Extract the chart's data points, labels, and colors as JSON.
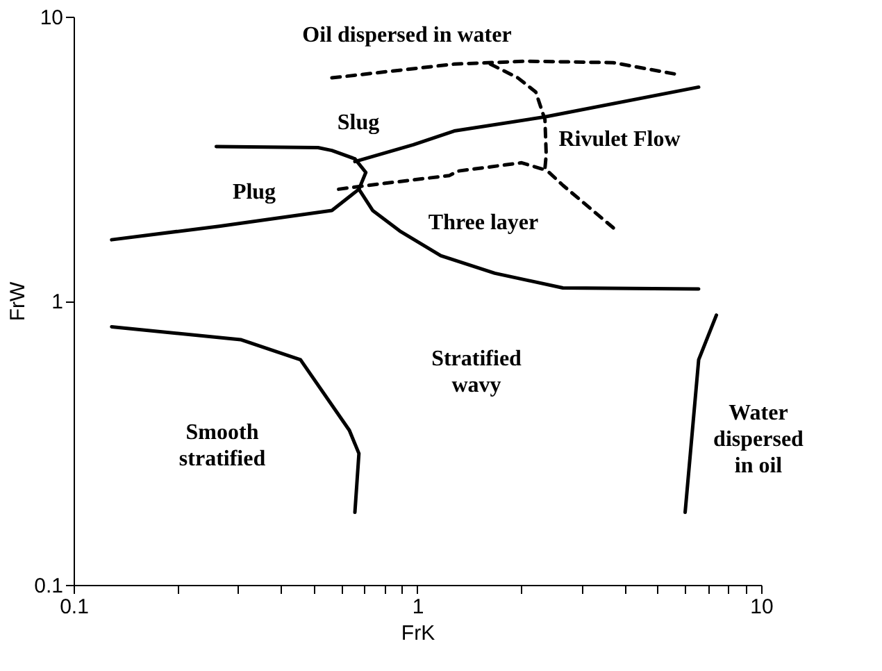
{
  "chart_data": {
    "type": "line",
    "xlabel": "FrK",
    "ylabel": "FrW",
    "log": "xy",
    "grid": false,
    "marker": "none",
    "xlim": [
      0.1,
      10
    ],
    "ylim": [
      0.1,
      10
    ],
    "xticks": [
      0.1,
      {
        "value": 0.2,
        "label": null
      },
      {
        "value": 0.3,
        "label": null
      },
      {
        "value": 0.4,
        "label": null
      },
      {
        "value": 0.5,
        "label": null
      },
      {
        "value": 0.6,
        "label": null
      },
      {
        "value": 0.7,
        "label": null
      },
      {
        "value": 0.8,
        "label": null
      },
      {
        "value": 0.9,
        "label": null
      },
      1,
      {
        "value": 2,
        "label": null
      },
      {
        "value": 3,
        "label": null
      },
      {
        "value": 4,
        "label": null
      },
      {
        "value": 5,
        "label": null
      },
      {
        "value": 6,
        "label": null
      },
      {
        "value": 7,
        "label": null
      },
      {
        "value": 8,
        "label": null
      },
      {
        "value": 9,
        "label": null
      },
      10
    ],
    "yticks": [
      0.1,
      1,
      10
    ],
    "series": [
      {
        "color": "#000000",
        "line_style": "solid",
        "x": [
          0.129,
          0.265,
          0.564,
          0.676,
          0.708,
          0.658,
          0.564,
          0.514,
          0.26
        ],
        "values": [
          1.64,
          1.83,
          2.08,
          2.47,
          2.83,
          3.16,
          3.38,
          3.46,
          3.49
        ]
      },
      {
        "color": "#000000",
        "line_style": "solid",
        "x": [
          0.658,
          0.973,
          1.28,
          2.35,
          6.58
        ],
        "values": [
          3.09,
          3.54,
          3.96,
          4.44,
          5.65
        ]
      },
      {
        "color": "#000000",
        "line_style": "solid",
        "x": [
          0.676,
          0.741,
          0.889,
          1.17,
          1.68,
          2.65,
          6.58
        ],
        "values": [
          2.47,
          2.08,
          1.76,
          1.44,
          1.25,
          1.11,
          1.1
        ]
      },
      {
        "color": "#000000",
        "line_style": "solid",
        "x": [
          0.129,
          0.306,
          0.457,
          0.634,
          0.676,
          0.658
        ],
        "values": [
          0.81,
          0.73,
          0.62,
          0.35,
          0.29,
          0.18
        ]
      },
      {
        "color": "#000000",
        "line_style": "solid",
        "x": [
          6.01,
          6.58,
          7.41
        ],
        "values": [
          0.18,
          0.62,
          0.89
        ]
      },
      {
        "color": "#000000",
        "line_style": "dashed",
        "x": [
          0.564,
          1.28,
          2.07,
          3.71,
          5.59
        ],
        "values": [
          6.09,
          6.81,
          6.97,
          6.89,
          6.29
        ]
      },
      {
        "color": "#000000",
        "line_style": "dashed",
        "x": [
          1.63,
          1.96,
          2.21,
          2.35,
          2.37,
          2.35,
          2.65,
          3.81
        ],
        "values": [
          6.81,
          6.09,
          5.43,
          4.34,
          3.27,
          2.92,
          2.55,
          1.76
        ]
      },
      {
        "color": "#000000",
        "line_style": "dashed",
        "x": [
          0.59,
          0.721,
          1.24,
          1.31,
          2.01,
          2.35
        ],
        "values": [
          2.47,
          2.55,
          2.76,
          2.86,
          3.06,
          2.89
        ]
      }
    ],
    "annotations": [
      "Oil dispersed in water",
      "Slug",
      "Plug",
      "Rivulet Flow",
      "Three layer",
      "Stratified\nwavy",
      "Smooth\nstratified",
      "Water\ndispersed\nin oil"
    ]
  }
}
